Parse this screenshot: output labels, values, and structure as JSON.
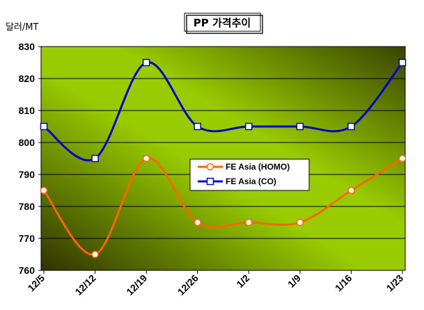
{
  "chart_data": {
    "type": "line",
    "title": "PP 가격추이",
    "ylabel": "달러/MT",
    "xlabel": "",
    "categories": [
      "12/5",
      "12/12",
      "12/19",
      "12/26",
      "1/2",
      "1/9",
      "1/16",
      "1/23"
    ],
    "ylim": [
      760,
      830
    ],
    "yticks": [
      760,
      770,
      780,
      790,
      800,
      810,
      820,
      830
    ],
    "grid": true,
    "legend_position": "center-right",
    "series": [
      {
        "name": "FE Asia (HOMO)",
        "values": [
          785,
          765,
          795,
          775,
          775,
          775,
          785,
          795
        ],
        "color": "#ff6600",
        "marker": "circle"
      },
      {
        "name": "FE Asia (CO)",
        "values": [
          805,
          795,
          825,
          805,
          805,
          805,
          805,
          825
        ],
        "color": "#0000cc",
        "marker": "square"
      }
    ]
  }
}
